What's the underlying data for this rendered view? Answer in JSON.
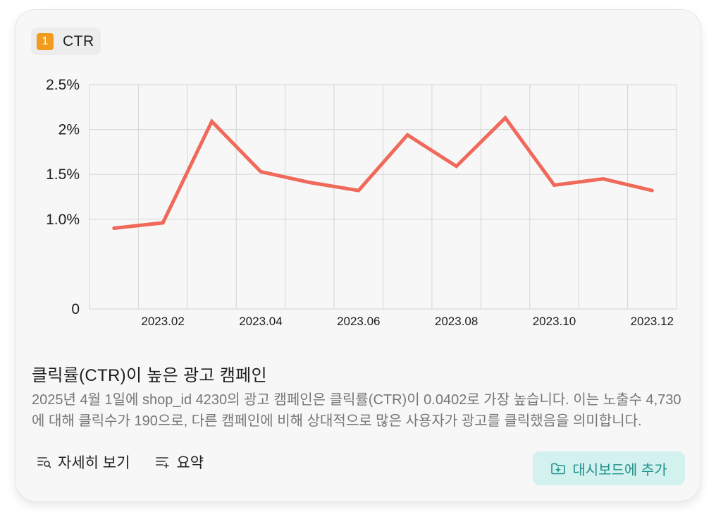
{
  "card": {
    "rank": "1",
    "metric_label": "CTR",
    "title": "클릭률(CTR)이 높은 광고 캠페인",
    "description": "2025년 4월 1일에 shop_id 4230의 광고 캠페인은 클릭률(CTR)이 0.0402로 가장 높습니다. 이는 노출수 4,730에 대해 클릭수가 190으로, 다른 캠페인에 비해 상대적으로 많은 사용자가 광고를 클릭했음을 의미합니다."
  },
  "actions": {
    "details_label": "자세히 보기",
    "summary_label": "요약",
    "add_dashboard_label": "대시보드에 추가"
  },
  "colors": {
    "line": "#f0695a",
    "badge": "#f29b1d",
    "accent": "#20918a",
    "accent_bg": "#d2f1ef"
  },
  "icons": {
    "details": "list-search-icon",
    "summary": "list-sparkle-icon",
    "dashboard": "folder-plus-icon"
  },
  "chart_data": {
    "type": "line",
    "x": [
      "2023.01",
      "2023.02",
      "2023.03",
      "2023.04",
      "2023.05",
      "2023.06",
      "2023.07",
      "2023.08",
      "2023.09",
      "2023.10",
      "2023.11",
      "2023.12"
    ],
    "tick_labels": [
      "2023.02",
      "2023.04",
      "2023.06",
      "2023.08",
      "2023.10",
      "2023.12"
    ],
    "series": [
      {
        "values": [
          0.009,
          0.0096,
          0.0209,
          0.0153,
          0.0141,
          0.0132,
          0.0194,
          0.0159,
          0.0213,
          0.0138,
          0.0145,
          0.0132
        ]
      }
    ],
    "yticks": [
      0,
      0.01,
      0.015,
      0.02,
      0.025
    ],
    "ytick_labels": [
      "0",
      "1.0%",
      "1.5%",
      "2%",
      "2.5%"
    ],
    "ylim": [
      0,
      0.025
    ],
    "grid": true,
    "legend": "none"
  }
}
